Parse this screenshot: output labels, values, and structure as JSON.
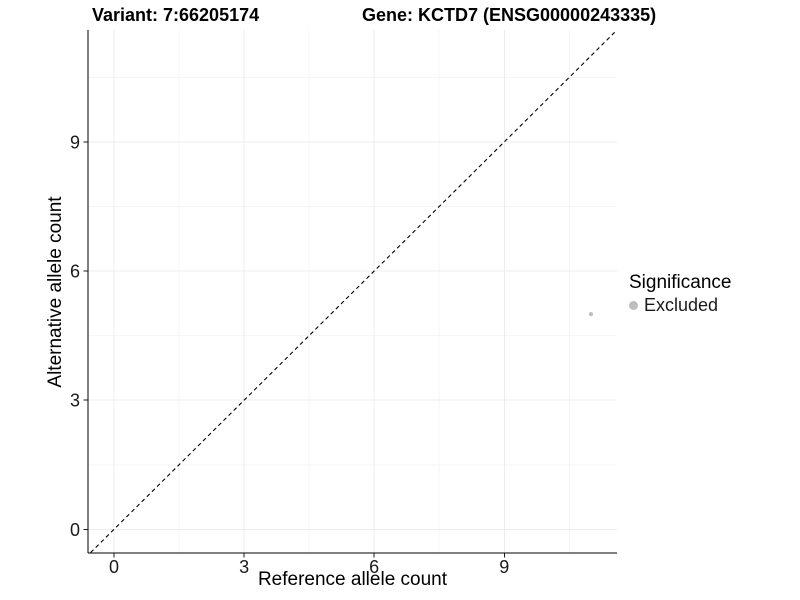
{
  "chart_data": {
    "type": "scatter",
    "title_left": "Variant: 7:66205174",
    "title_right": "Gene: KCTD7 (ENSG00000243335)",
    "xlabel": "Reference allele count",
    "ylabel": "Alternative allele count",
    "x_ticks": [
      0,
      3,
      6,
      9
    ],
    "y_ticks": [
      0,
      3,
      6,
      9
    ],
    "x_minor_ticks": [
      1.5,
      4.5,
      7.5,
      10.5
    ],
    "y_minor_ticks": [
      1.5,
      4.5,
      7.5,
      10.5
    ],
    "xlim": [
      -0.6,
      11.6
    ],
    "ylim": [
      -0.55,
      11.6
    ],
    "grid": true,
    "legend_position": "right",
    "points": [
      {
        "x": 11,
        "y": 5,
        "significance": "Excluded"
      }
    ],
    "reference_line": {
      "slope": 1,
      "intercept": 0,
      "style": "dashed",
      "color": "#000000"
    },
    "legend": {
      "title": "Significance",
      "entries": [
        {
          "label": "Excluded",
          "color": "#bebebe"
        }
      ]
    },
    "colors": {
      "point": "#bebebe",
      "grid_major": "#ececec",
      "grid_minor": "#f5f5f5",
      "axis": "#000000",
      "tick_text": "#1a1a1a"
    }
  }
}
